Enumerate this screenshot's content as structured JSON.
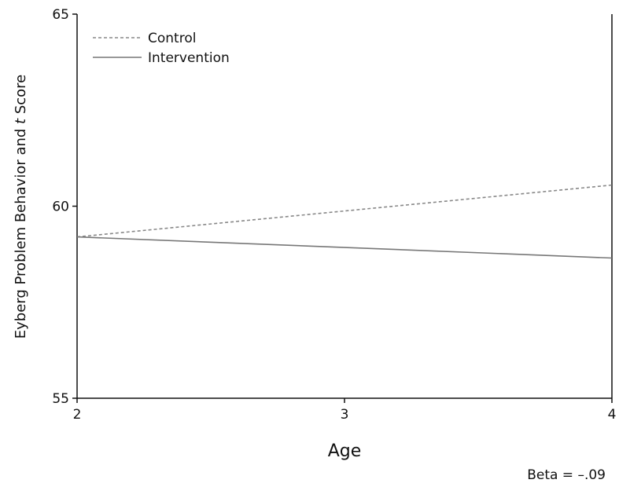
{
  "chart_data": {
    "type": "line",
    "xlabel": "Age",
    "ylabel_parts": [
      "Eyberg Problem Behavior and ",
      "t",
      " Score"
    ],
    "x_ticks": [
      "2",
      "3",
      "4"
    ],
    "y_ticks": [
      "55",
      "60",
      "65"
    ],
    "xlim": [
      2,
      4
    ],
    "ylim": [
      55,
      65
    ],
    "grid": false,
    "legend_position": "top-left",
    "series": [
      {
        "name": "Control",
        "x": [
          2,
          4
        ],
        "y": [
          59.2,
          60.55
        ],
        "style": "dashed",
        "color": "#888888"
      },
      {
        "name": "Intervention",
        "x": [
          2,
          4
        ],
        "y": [
          59.2,
          58.65
        ],
        "style": "solid",
        "color": "#777777"
      }
    ],
    "annotation": "Beta = –.09"
  }
}
